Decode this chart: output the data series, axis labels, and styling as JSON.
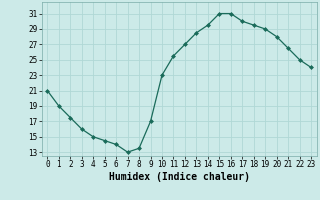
{
  "x": [
    0,
    1,
    2,
    3,
    4,
    5,
    6,
    7,
    8,
    9,
    10,
    11,
    12,
    13,
    14,
    15,
    16,
    17,
    18,
    19,
    20,
    21,
    22,
    23
  ],
  "y": [
    21,
    19,
    17.5,
    16,
    15,
    14.5,
    14,
    13,
    13.5,
    17,
    23,
    25.5,
    27,
    28.5,
    29.5,
    31,
    31,
    30,
    29.5,
    29,
    28,
    26.5,
    25,
    24
  ],
  "line_color": "#1a6b5a",
  "marker": "D",
  "marker_size": 2.0,
  "bg_color": "#cceae8",
  "grid_color": "#b0d8d5",
  "xlabel": "Humidex (Indice chaleur)",
  "xlabel_fontsize": 7,
  "ylabel_ticks": [
    13,
    15,
    17,
    19,
    21,
    23,
    25,
    27,
    29,
    31
  ],
  "xticks": [
    0,
    1,
    2,
    3,
    4,
    5,
    6,
    7,
    8,
    9,
    10,
    11,
    12,
    13,
    14,
    15,
    16,
    17,
    18,
    19,
    20,
    21,
    22,
    23
  ],
  "ylim": [
    12.5,
    32.5
  ],
  "xlim": [
    -0.5,
    23.5
  ]
}
